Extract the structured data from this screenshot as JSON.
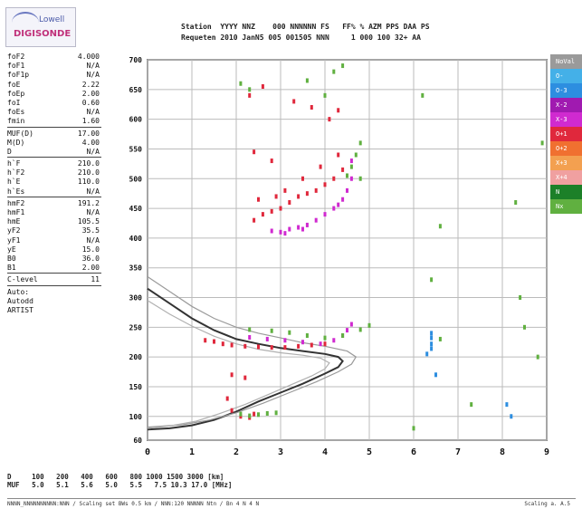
{
  "logo": {
    "line1": "Lowell",
    "line2": "DIGISONDE"
  },
  "header": {
    "line1": "Station  YYYY NNZ    000 NNNNNN FS   FF% % AZM PPS DAA PS",
    "line2": "Requeten 2010 JanN5 005 001505 NNN     1 000 100 32+ AA"
  },
  "params": [
    {
      "k": "foF2",
      "v": "4.000"
    },
    {
      "k": "foF1",
      "v": "N/A"
    },
    {
      "k": "foF1p",
      "v": "N/A"
    },
    {
      "k": "foE",
      "v": "2.22"
    },
    {
      "k": "foEp",
      "v": "2.00"
    },
    {
      "k": "foI",
      "v": "0.60"
    },
    {
      "k": "foEs",
      "v": "N/A"
    },
    {
      "k": "fmin",
      "v": "1.60"
    },
    {
      "sep": true
    },
    {
      "k": "MUF(D)",
      "v": "17.00"
    },
    {
      "k": "M(D)",
      "v": "4.00"
    },
    {
      "k": "D",
      "v": "N/A"
    },
    {
      "sep": true
    },
    {
      "k": "h`F",
      "v": "210.0"
    },
    {
      "k": "h`F2",
      "v": "210.0"
    },
    {
      "k": "h`E",
      "v": "110.0"
    },
    {
      "k": "h`Es",
      "v": "N/A"
    },
    {
      "sep": true
    },
    {
      "k": "hmF2",
      "v": "191.2"
    },
    {
      "k": "hmF1",
      "v": "N/A"
    },
    {
      "k": "hmE",
      "v": "105.5"
    },
    {
      "k": "yF2",
      "v": "35.5"
    },
    {
      "k": "yF1",
      "v": "N/A"
    },
    {
      "k": "yE",
      "v": "15.0"
    },
    {
      "k": "B0",
      "v": "36.0"
    },
    {
      "k": "B1",
      "v": "2.00"
    },
    {
      "sep": true
    },
    {
      "k": "C-level",
      "v": "11"
    },
    {
      "sep": true
    },
    {
      "k": "Auto:",
      "v": ""
    },
    {
      "k": "Autodd",
      "v": ""
    },
    {
      "k": "ARTIST",
      "v": ""
    }
  ],
  "legend": [
    {
      "label": "NoVal",
      "color": "#9a9a9a"
    },
    {
      "label": "O-",
      "color": "#44b0e8"
    },
    {
      "label": "O-3",
      "color": "#2d8ee0"
    },
    {
      "label": "X-2",
      "color": "#a01ab0"
    },
    {
      "label": "X-3",
      "color": "#d02ad0"
    },
    {
      "label": "O+1",
      "color": "#e0283c"
    },
    {
      "label": "O+2",
      "color": "#f07030"
    },
    {
      "label": "X+3",
      "color": "#f3a050"
    },
    {
      "label": "X+4",
      "color": "#f0a0a0"
    },
    {
      "label": "N",
      "color": "#1c8028"
    },
    {
      "label": "Nx",
      "color": "#60b040"
    }
  ],
  "footer": {
    "line1": "D     100   200   400   600   800 1000 1500 3000 [km]",
    "line2": "MUF   5.0   5.1   5.6   5.0   5.5   7.5 10.3 17.0 [MHz]"
  },
  "status": {
    "left": "NNNN_NNNNNNNNNN:NNN / Scaling set BWs 0.5 km / NNN:120 NNNNN Ntn / Bn 4 N 4 N",
    "right": "Scaling a. A.5"
  },
  "chart_data": {
    "type": "scatter",
    "xlim": [
      0,
      9
    ],
    "ylim": [
      60,
      700
    ],
    "x_ticks": [
      0,
      1,
      2,
      3,
      4,
      5,
      6,
      7,
      8,
      9
    ],
    "y_ticks": [
      60,
      100,
      150,
      200,
      250,
      300,
      350,
      400,
      450,
      500,
      550,
      600,
      650,
      700
    ],
    "grid": true,
    "legend_position": "right",
    "series": [
      {
        "name": "O+1",
        "color": "#e0283c",
        "points": [
          [
            2.3,
            640
          ],
          [
            2.6,
            655
          ],
          [
            3.3,
            630
          ],
          [
            3.7,
            620
          ],
          [
            4.1,
            600
          ],
          [
            4.3,
            615
          ],
          [
            2.4,
            430
          ],
          [
            2.6,
            440
          ],
          [
            2.8,
            445
          ],
          [
            3.0,
            450
          ],
          [
            3.2,
            460
          ],
          [
            3.4,
            470
          ],
          [
            3.6,
            475
          ],
          [
            3.8,
            480
          ],
          [
            4.0,
            490
          ],
          [
            4.2,
            500
          ],
          [
            4.4,
            515
          ],
          [
            2.5,
            465
          ],
          [
            2.9,
            470
          ],
          [
            3.1,
            480
          ],
          [
            3.5,
            500
          ],
          [
            3.9,
            520
          ],
          [
            4.3,
            540
          ],
          [
            2.4,
            545
          ],
          [
            2.8,
            530
          ],
          [
            1.3,
            228
          ],
          [
            1.5,
            226
          ],
          [
            1.7,
            222
          ],
          [
            1.9,
            220
          ],
          [
            2.2,
            218
          ],
          [
            2.5,
            217
          ],
          [
            2.8,
            216
          ],
          [
            3.1,
            216
          ],
          [
            3.4,
            218
          ],
          [
            3.7,
            220
          ],
          [
            4.0,
            222
          ],
          [
            1.9,
            170
          ],
          [
            2.2,
            165
          ],
          [
            1.8,
            130
          ],
          [
            1.9,
            110
          ],
          [
            2.1,
            100
          ],
          [
            2.3,
            98
          ],
          [
            2.4,
            104
          ]
        ]
      },
      {
        "name": "X-3",
        "color": "#d02ad0",
        "points": [
          [
            3.0,
            410
          ],
          [
            3.2,
            415
          ],
          [
            3.4,
            418
          ],
          [
            3.6,
            422
          ],
          [
            3.8,
            430
          ],
          [
            4.0,
            440
          ],
          [
            4.2,
            450
          ],
          [
            4.4,
            465
          ],
          [
            4.5,
            480
          ],
          [
            4.6,
            500
          ],
          [
            4.6,
            530
          ],
          [
            2.8,
            412
          ],
          [
            3.1,
            408
          ],
          [
            3.5,
            415
          ],
          [
            4.3,
            456
          ],
          [
            2.3,
            233
          ],
          [
            2.7,
            230
          ],
          [
            3.1,
            228
          ],
          [
            3.5,
            225
          ],
          [
            3.9,
            222
          ],
          [
            4.2,
            228
          ],
          [
            4.4,
            236
          ],
          [
            4.5,
            245
          ],
          [
            4.6,
            255
          ]
        ]
      },
      {
        "name": "Nx",
        "color": "#60b040",
        "points": [
          [
            2.1,
            660
          ],
          [
            2.3,
            650
          ],
          [
            3.6,
            665
          ],
          [
            4.2,
            680
          ],
          [
            4.4,
            690
          ],
          [
            4.0,
            640
          ],
          [
            4.6,
            520
          ],
          [
            4.7,
            540
          ],
          [
            4.8,
            560
          ],
          [
            4.5,
            505
          ],
          [
            4.8,
            500
          ],
          [
            2.3,
            246
          ],
          [
            2.8,
            244
          ],
          [
            3.2,
            241
          ],
          [
            3.6,
            236
          ],
          [
            4.0,
            232
          ],
          [
            4.4,
            236
          ],
          [
            4.8,
            246
          ],
          [
            5.0,
            253
          ],
          [
            2.1,
            104
          ],
          [
            2.3,
            101
          ],
          [
            2.5,
            103
          ],
          [
            2.7,
            105
          ],
          [
            2.9,
            106
          ],
          [
            6.0,
            80
          ],
          [
            6.4,
            330
          ],
          [
            6.6,
            420
          ],
          [
            8.5,
            250
          ],
          [
            8.3,
            460
          ],
          [
            8.4,
            300
          ],
          [
            6.2,
            640
          ],
          [
            7.3,
            120
          ],
          [
            8.9,
            560
          ],
          [
            8.8,
            200
          ],
          [
            6.6,
            230
          ]
        ]
      },
      {
        "name": "O-3",
        "color": "#2d8ee0",
        "points": [
          [
            6.4,
            240
          ],
          [
            6.4,
            232
          ],
          [
            6.4,
            222
          ],
          [
            6.4,
            214
          ],
          [
            6.3,
            205
          ],
          [
            8.1,
            120
          ],
          [
            8.2,
            100
          ],
          [
            6.5,
            170
          ]
        ]
      }
    ],
    "curves": [
      {
        "name": "",
        "color": "#333333",
        "points": [
          [
            0.0,
            315
          ],
          [
            0.5,
            290
          ],
          [
            1.0,
            265
          ],
          [
            1.5,
            245
          ],
          [
            2.0,
            230
          ],
          [
            2.5,
            222
          ],
          [
            3.0,
            215
          ],
          [
            3.5,
            210
          ],
          [
            4.0,
            205
          ],
          [
            4.3,
            200
          ],
          [
            4.4,
            193
          ],
          [
            4.3,
            183
          ],
          [
            4.0,
            172
          ],
          [
            3.5,
            155
          ],
          [
            3.0,
            140
          ],
          [
            2.5,
            125
          ],
          [
            2.0,
            108
          ],
          [
            1.5,
            94
          ],
          [
            1.0,
            85
          ],
          [
            0.5,
            80
          ],
          [
            0.0,
            78
          ]
        ]
      },
      {
        "name": "",
        "color": "#9a9a9a",
        "points": [
          [
            0.0,
            335
          ],
          [
            0.5,
            310
          ],
          [
            1.0,
            285
          ],
          [
            1.5,
            265
          ],
          [
            2.0,
            250
          ],
          [
            2.5,
            240
          ],
          [
            3.0,
            232
          ],
          [
            3.5,
            224
          ],
          [
            4.0,
            218
          ],
          [
            4.5,
            210
          ],
          [
            4.7,
            200
          ],
          [
            4.6,
            188
          ],
          [
            4.3,
            175
          ],
          [
            3.8,
            158
          ],
          [
            3.2,
            140
          ],
          [
            2.6,
            122
          ],
          [
            2.0,
            106
          ],
          [
            1.4,
            94
          ],
          [
            0.8,
            86
          ],
          [
            0.0,
            82
          ]
        ]
      },
      {
        "name": "",
        "color": "#b0b0b0",
        "points": [
          [
            0.0,
            295
          ],
          [
            0.5,
            272
          ],
          [
            1.0,
            252
          ],
          [
            1.5,
            235
          ],
          [
            2.0,
            222
          ],
          [
            2.5,
            213
          ],
          [
            3.0,
            207
          ],
          [
            3.5,
            203
          ],
          [
            3.9,
            198
          ],
          [
            4.1,
            190
          ],
          [
            4.0,
            180
          ],
          [
            3.7,
            168
          ],
          [
            3.2,
            152
          ],
          [
            2.7,
            136
          ],
          [
            2.2,
            120
          ],
          [
            1.6,
            104
          ],
          [
            1.1,
            92
          ],
          [
            0.5,
            84
          ],
          [
            0.0,
            80
          ]
        ]
      }
    ]
  }
}
